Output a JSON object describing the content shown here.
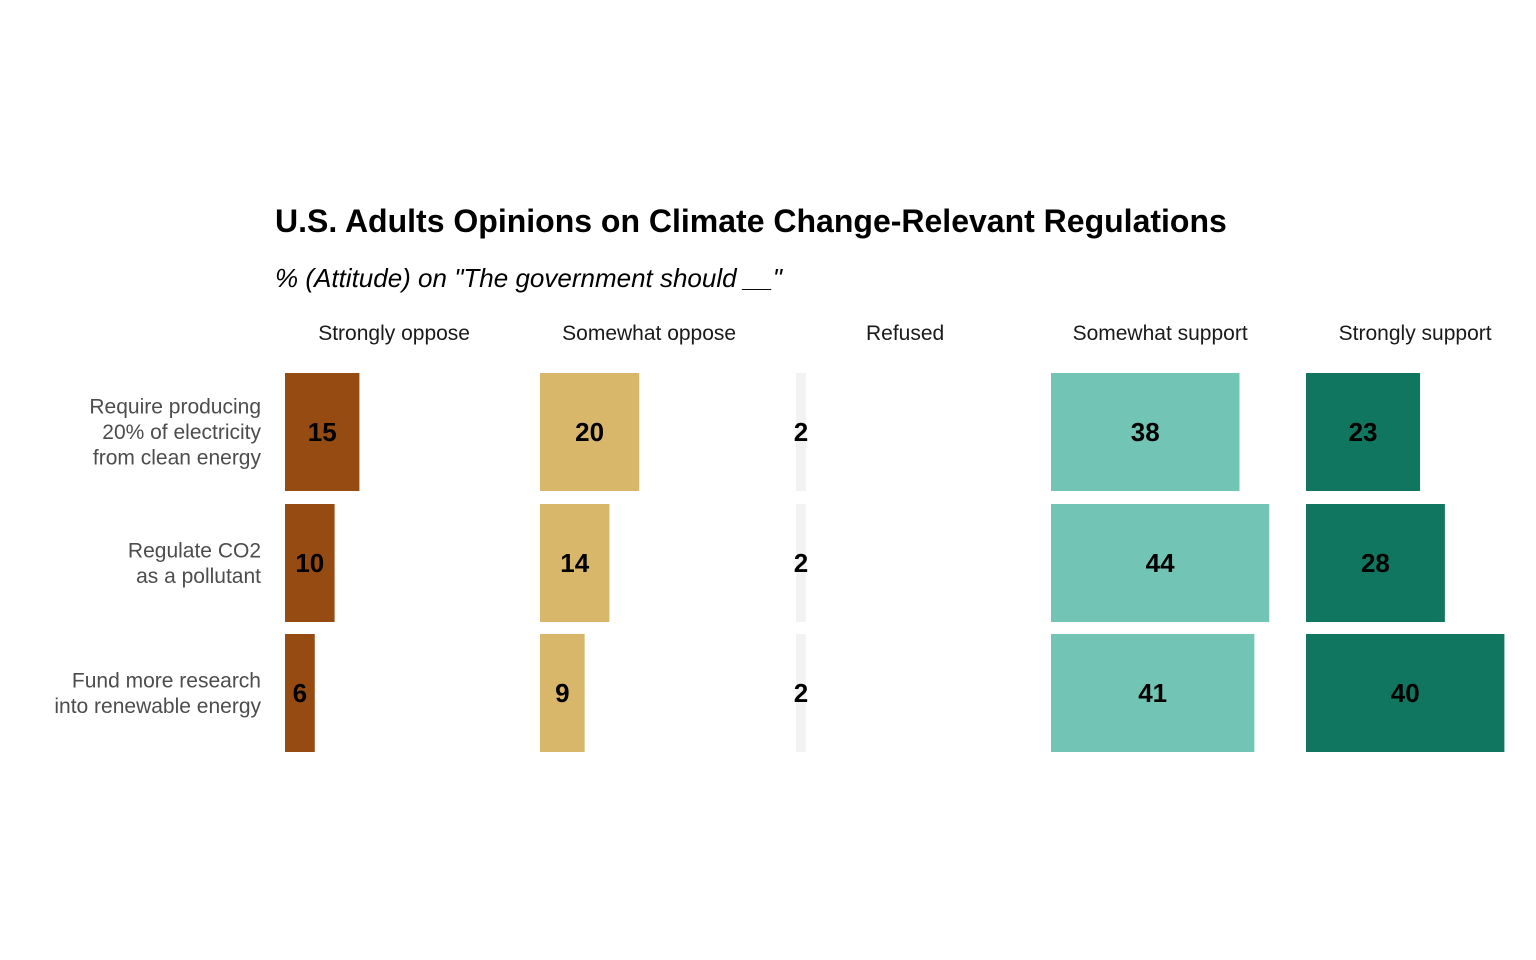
{
  "chart_data": {
    "type": "bar",
    "title": "U.S. Adults Opinions on Climate Change-Relevant Regulations",
    "subtitle": "% (Attitude) on \"The government should __\"",
    "xlabel": "",
    "ylabel": "",
    "xlim": [
      0,
      44
    ],
    "categories": [
      [
        "Require producing",
        "20% of electricity",
        "from clean energy"
      ],
      [
        "Regulate CO2",
        "as a pollutant"
      ],
      [
        "Fund more research",
        "into renewable energy"
      ]
    ],
    "series": [
      {
        "name": "Strongly oppose",
        "color": "#954B12",
        "values": [
          15,
          10,
          6
        ]
      },
      {
        "name": "Somewhat oppose",
        "color": "#D8B66A",
        "values": [
          20,
          14,
          9
        ]
      },
      {
        "name": "Refused",
        "color": "#F2F2F2",
        "values": [
          2,
          2,
          2
        ]
      },
      {
        "name": "Somewhat support",
        "color": "#72C4B4",
        "values": [
          38,
          44,
          41
        ]
      },
      {
        "name": "Strongly support",
        "color": "#10765F",
        "values": [
          23,
          28,
          40
        ]
      }
    ]
  }
}
